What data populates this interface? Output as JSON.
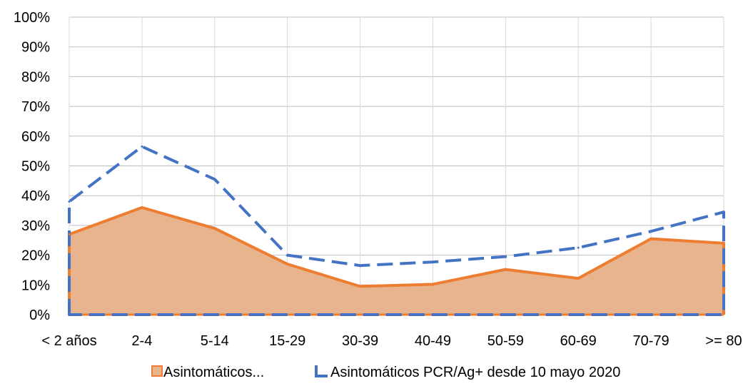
{
  "chart_data": {
    "type": "area",
    "categories": [
      "< 2 años",
      "2-4",
      "5-14",
      "15-29",
      "30-39",
      "40-49",
      "50-59",
      "60-69",
      "70-79",
      ">= 80"
    ],
    "ylim": [
      0,
      100
    ],
    "yticks": [
      "0%",
      "10%",
      "20%",
      "30%",
      "40%",
      "50%",
      "60%",
      "70%",
      "80%",
      "90%",
      "100%"
    ],
    "grid": true,
    "legend_position": "bottom",
    "series": [
      {
        "name": "Asintomáticos...",
        "style": "filled-area",
        "color": "#ED7D31",
        "fill": "#E8B48E",
        "values": [
          27,
          36,
          29,
          17,
          9.5,
          10.2,
          15.2,
          12.2,
          25.5,
          24
        ]
      },
      {
        "name": "Asintomáticos PCR/Ag+ desde 10 mayo 2020",
        "style": "dashed-area",
        "color": "#4472C4",
        "values": [
          38,
          56.5,
          45.5,
          20,
          16.5,
          17.7,
          19.5,
          22.5,
          28,
          34.5
        ]
      }
    ]
  }
}
